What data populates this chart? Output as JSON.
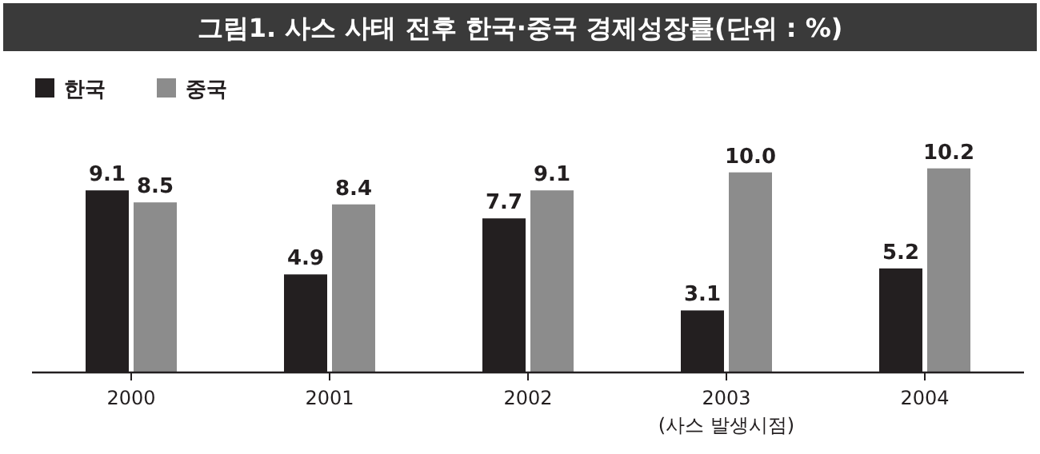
{
  "chart_data": {
    "type": "bar",
    "title": "그림1. 사스 사태 전후 한국·중국 경제성장률(단위 : %)",
    "categories": [
      "2000",
      "2001",
      "2002",
      "2003\n(사스 발생시점)",
      "2004"
    ],
    "series": [
      {
        "name": "한국",
        "color": "#231f20",
        "values": [
          9.1,
          4.9,
          7.7,
          3.1,
          5.2
        ],
        "value_labels": [
          "9.1",
          "4.9",
          "7.7",
          "3.1",
          "5.2"
        ]
      },
      {
        "name": "중국",
        "color": "#8c8c8c",
        "values": [
          8.5,
          8.4,
          9.1,
          10.0,
          10.2
        ],
        "value_labels": [
          "8.5",
          "8.4",
          "9.1",
          "10.0",
          "10.2"
        ]
      }
    ],
    "legend": "top left"
  }
}
